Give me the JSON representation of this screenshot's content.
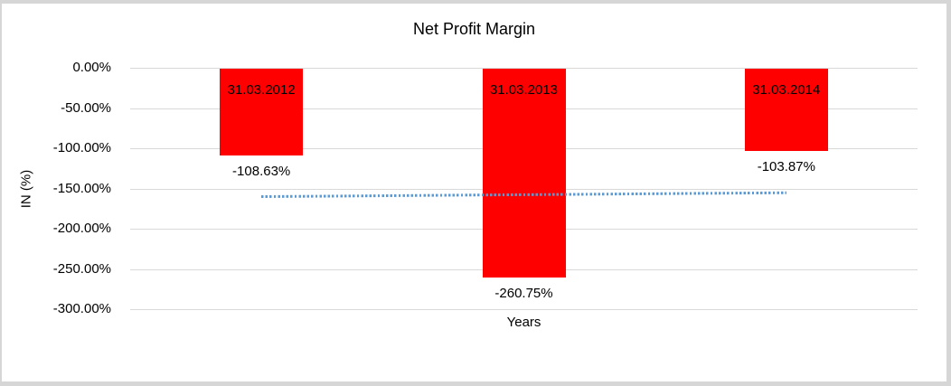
{
  "frame": {
    "background": "#ffffff",
    "border_color": "#d6d6d6"
  },
  "chart_data": {
    "type": "bar",
    "title": "Net Profit Margin",
    "xlabel": "Years",
    "ylabel": "IN (%)",
    "categories": [
      "31.03.2012",
      "31.03.2013",
      "31.03.2014"
    ],
    "values": [
      -108.63,
      -260.75,
      -103.87
    ],
    "value_labels": [
      "-108.63%",
      "-260.75%",
      "-103.87%"
    ],
    "category_label_position": "inside-end",
    "value_label_position": "outside-end",
    "y_ticks": [
      {
        "value": 0,
        "label": "0.00%"
      },
      {
        "value": -50,
        "label": "-50.00%"
      },
      {
        "value": -100,
        "label": "-100.00%"
      },
      {
        "value": -150,
        "label": "-150.00%"
      },
      {
        "value": -200,
        "label": "-200.00%"
      },
      {
        "value": -250,
        "label": "-250.00%"
      },
      {
        "value": -300,
        "label": "-300.00%"
      }
    ],
    "ylim": [
      0,
      -300
    ],
    "grid": true,
    "legend_position": "none",
    "bar_color": "#ff0000",
    "gridline_color": "#d9d9d9",
    "text_color": "#000000",
    "trendline": {
      "type": "linear",
      "style": "dotted",
      "color": "#5b9bd5",
      "start_value": -160.13,
      "end_value": -155.37
    }
  }
}
